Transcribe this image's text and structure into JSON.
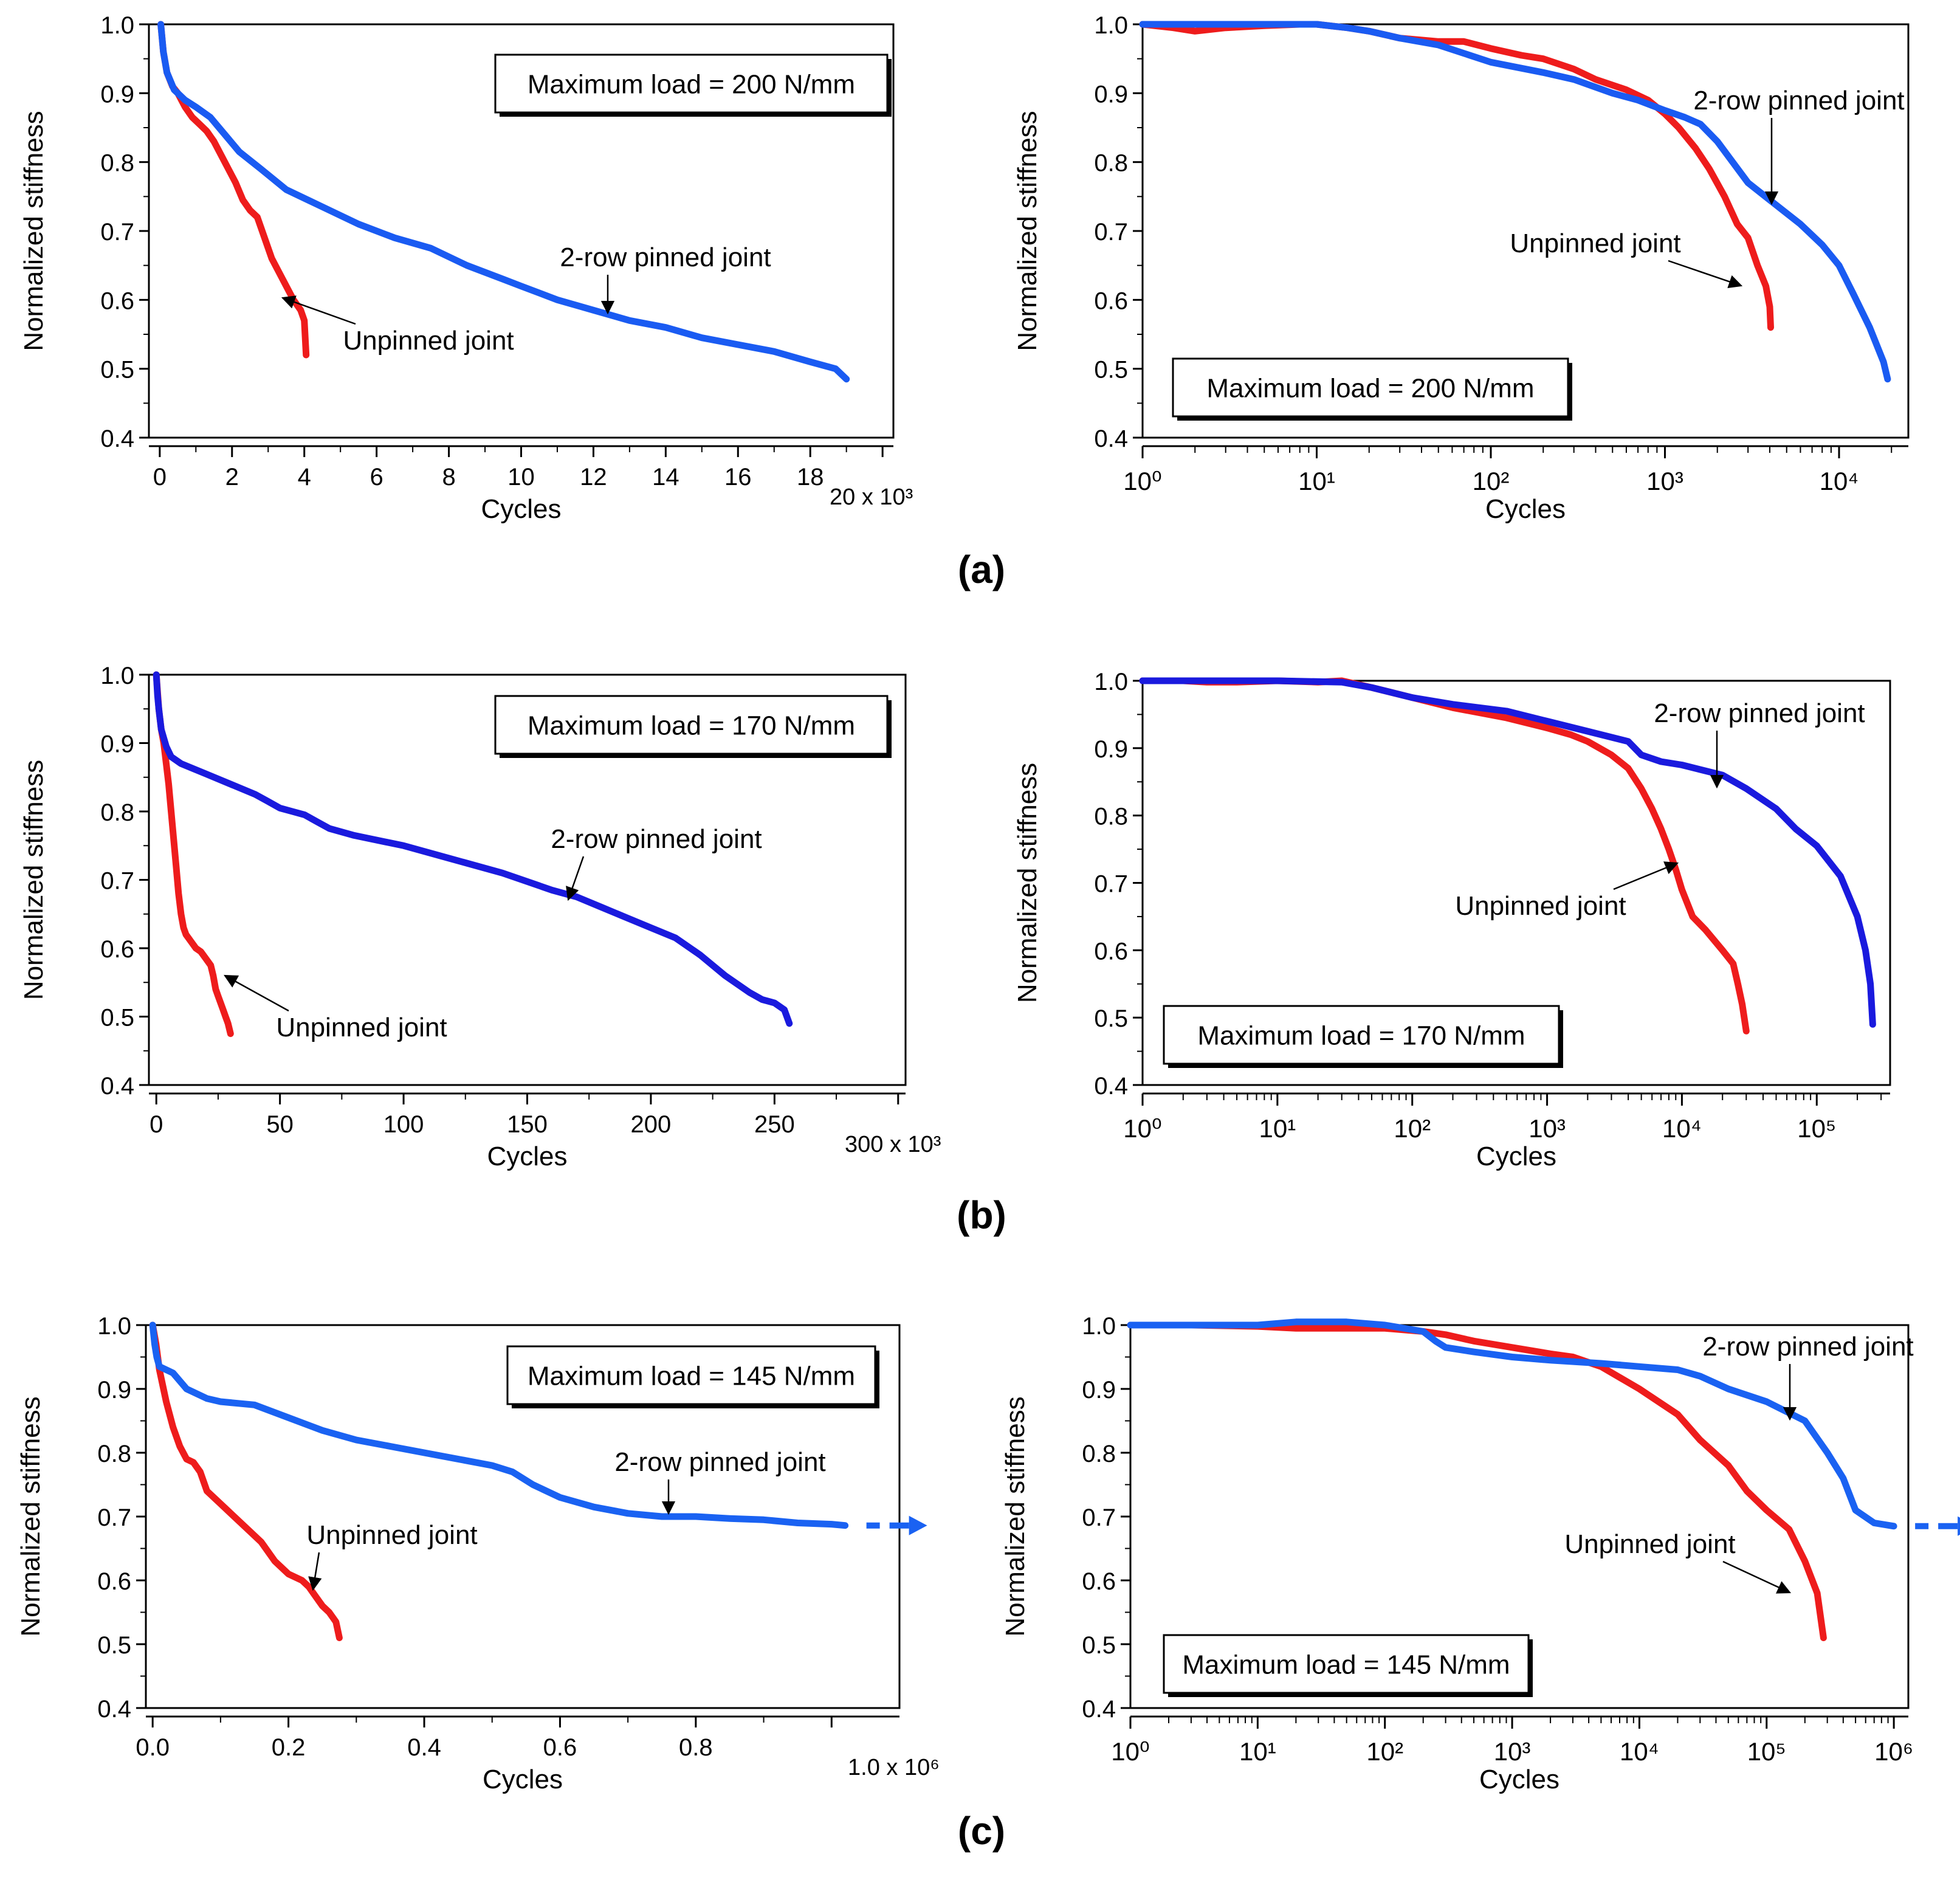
{
  "row_labels": [
    "(a)",
    "(b)",
    "(c)"
  ],
  "colors": {
    "unpinned": "#ee1c1c",
    "pinned_load200": "#1a5bf2",
    "pinned_load170": "#1a1ade",
    "pinned_load145": "#1a62f2"
  },
  "chart_data": [
    {
      "id": "a-linear",
      "type": "line",
      "xscale": "linear",
      "xlabel": "Cycles",
      "ylabel": "Normalized stiffness",
      "xlim": [
        -0.3,
        20.3
      ],
      "ylim": [
        0.4,
        1.0
      ],
      "xticks": [
        "0",
        "2",
        "4",
        "6",
        "8",
        "10",
        "12",
        "14",
        "16",
        "18"
      ],
      "xtick_values": [
        0,
        2,
        4,
        6,
        8,
        10,
        12,
        14,
        16,
        18
      ],
      "x_multiplier_label": "20 x 10³",
      "yticks": [
        "0.4",
        "0.5",
        "0.6",
        "0.7",
        "0.8",
        "0.9",
        "1.0"
      ],
      "ytick_values": [
        0.4,
        0.5,
        0.6,
        0.7,
        0.8,
        0.9,
        1.0
      ],
      "legend_box": {
        "text": "Maximum load = 200 N/mm",
        "position": "top-right"
      },
      "series": [
        {
          "name": "Unpinned joint",
          "color": "unpinned",
          "x": [
            0.03,
            0.1,
            0.2,
            0.35,
            0.5,
            0.7,
            0.9,
            1.1,
            1.3,
            1.5,
            1.7,
            1.9,
            2.1,
            2.3,
            2.5,
            2.7,
            2.9,
            3.1,
            3.3,
            3.5,
            3.7,
            3.9,
            4.0,
            4.05
          ],
          "y": [
            1.0,
            0.96,
            0.93,
            0.91,
            0.9,
            0.88,
            0.865,
            0.855,
            0.845,
            0.83,
            0.81,
            0.79,
            0.77,
            0.745,
            0.73,
            0.72,
            0.69,
            0.66,
            0.64,
            0.62,
            0.6,
            0.585,
            0.57,
            0.52
          ]
        },
        {
          "name": "2-row pinned joint",
          "color": "pinned_load200",
          "x": [
            0.03,
            0.1,
            0.2,
            0.4,
            0.7,
            1.0,
            1.4,
            1.8,
            2.2,
            2.8,
            3.5,
            4.5,
            5.5,
            6.5,
            7.5,
            8.5,
            9.5,
            10,
            11,
            12,
            13,
            14,
            15,
            16,
            17,
            18,
            18.7,
            19.0
          ],
          "y": [
            1.0,
            0.96,
            0.93,
            0.905,
            0.89,
            0.88,
            0.865,
            0.84,
            0.815,
            0.79,
            0.76,
            0.735,
            0.71,
            0.69,
            0.675,
            0.65,
            0.63,
            0.62,
            0.6,
            0.585,
            0.57,
            0.56,
            0.545,
            0.535,
            0.525,
            0.51,
            0.5,
            0.485
          ]
        }
      ],
      "annotations": [
        {
          "text": "2-row pinned joint",
          "target": "2-row pinned joint"
        },
        {
          "text": "Unpinned joint",
          "target": "Unpinned joint"
        }
      ]
    },
    {
      "id": "a-log",
      "type": "line",
      "xscale": "log",
      "xlabel": "Cycles",
      "ylabel": "Normalized stiffness",
      "xlim": [
        1,
        25000
      ],
      "ylim": [
        0.4,
        1.0
      ],
      "xticks": [
        "10^0",
        "10^1",
        "10^2",
        "10^3",
        "10^4"
      ],
      "yticks": [
        "0.4",
        "0.5",
        "0.6",
        "0.7",
        "0.8",
        "0.9",
        "1.0"
      ],
      "ytick_values": [
        0.4,
        0.5,
        0.6,
        0.7,
        0.8,
        0.9,
        1.0
      ],
      "legend_box": {
        "text": "Maximum load = 200 N/mm",
        "position": "bottom-left"
      },
      "series": [
        {
          "name": "Unpinned joint",
          "color": "unpinned",
          "x": [
            1,
            1.5,
            2,
            3,
            5,
            8,
            10,
            15,
            20,
            30,
            50,
            70,
            100,
            150,
            200,
            300,
            400,
            600,
            800,
            1000,
            1200,
            1500,
            1800,
            2200,
            2600,
            3000,
            3400,
            3800,
            4000,
            4050
          ],
          "y": [
            1.0,
            0.995,
            0.99,
            0.995,
            0.998,
            1.0,
            1.0,
            0.995,
            0.99,
            0.98,
            0.975,
            0.975,
            0.965,
            0.955,
            0.95,
            0.935,
            0.92,
            0.905,
            0.89,
            0.87,
            0.85,
            0.82,
            0.79,
            0.75,
            0.71,
            0.69,
            0.65,
            0.62,
            0.59,
            0.56
          ]
        },
        {
          "name": "2-row pinned joint",
          "color": "pinned_load200",
          "x": [
            1,
            2,
            5,
            10,
            15,
            20,
            30,
            50,
            100,
            200,
            300,
            500,
            700,
            1000,
            1300,
            1600,
            2000,
            3000,
            4000,
            6000,
            8000,
            10000,
            12000,
            15000,
            18000,
            19000
          ],
          "y": [
            1.0,
            1.0,
            1.0,
            1.0,
            0.995,
            0.99,
            0.98,
            0.97,
            0.945,
            0.93,
            0.92,
            0.9,
            0.89,
            0.875,
            0.865,
            0.855,
            0.83,
            0.77,
            0.745,
            0.71,
            0.68,
            0.65,
            0.61,
            0.56,
            0.51,
            0.485
          ]
        }
      ],
      "annotations": [
        {
          "text": "2-row pinned joint",
          "target": "2-row pinned joint"
        },
        {
          "text": "Unpinned joint",
          "target": "Unpinned joint"
        }
      ]
    },
    {
      "id": "b-linear",
      "type": "line",
      "xscale": "linear",
      "xlabel": "Cycles",
      "ylabel": "Normalized stiffness",
      "xlim": [
        -3,
        303
      ],
      "ylim": [
        0.4,
        1.0
      ],
      "xticks": [
        "0",
        "50",
        "100",
        "150",
        "200",
        "250"
      ],
      "xtick_values": [
        0,
        50,
        100,
        150,
        200,
        250
      ],
      "x_multiplier_label": "300 x 10³",
      "yticks": [
        "0.4",
        "0.5",
        "0.6",
        "0.7",
        "0.8",
        "0.9",
        "1.0"
      ],
      "ytick_values": [
        0.4,
        0.5,
        0.6,
        0.7,
        0.8,
        0.9,
        1.0
      ],
      "legend_box": {
        "text": "Maximum load = 170 N/mm",
        "position": "top-right"
      },
      "series": [
        {
          "name": "Unpinned joint",
          "color": "unpinned",
          "x": [
            0,
            1,
            2,
            3,
            4,
            5,
            6,
            7,
            8,
            9,
            10,
            11,
            12,
            14,
            16,
            18,
            20,
            22,
            23,
            24,
            25,
            26,
            27,
            28,
            29,
            30
          ],
          "y": [
            1.0,
            0.95,
            0.92,
            0.9,
            0.87,
            0.84,
            0.8,
            0.76,
            0.72,
            0.68,
            0.65,
            0.63,
            0.62,
            0.61,
            0.6,
            0.595,
            0.585,
            0.575,
            0.56,
            0.54,
            0.53,
            0.52,
            0.51,
            0.5,
            0.49,
            0.475
          ]
        },
        {
          "name": "2-row pinned joint",
          "color": "pinned_load170",
          "x": [
            0,
            0.5,
            1,
            2,
            4,
            6,
            10,
            20,
            30,
            40,
            45,
            50,
            55,
            60,
            65,
            70,
            80,
            100,
            120,
            140,
            160,
            170,
            180,
            190,
            200,
            210,
            220,
            230,
            240,
            245,
            250,
            254,
            255,
            256
          ],
          "y": [
            1.0,
            0.97,
            0.95,
            0.92,
            0.895,
            0.88,
            0.87,
            0.855,
            0.84,
            0.825,
            0.815,
            0.805,
            0.8,
            0.795,
            0.785,
            0.775,
            0.765,
            0.75,
            0.73,
            0.71,
            0.685,
            0.675,
            0.66,
            0.645,
            0.63,
            0.615,
            0.59,
            0.56,
            0.535,
            0.525,
            0.52,
            0.51,
            0.5,
            0.49
          ]
        }
      ],
      "annotations": [
        {
          "text": "2-row pinned joint",
          "target": "2-row pinned joint"
        },
        {
          "text": "Unpinned joint",
          "target": "Unpinned joint"
        }
      ]
    },
    {
      "id": "b-log",
      "type": "line",
      "xscale": "log",
      "xlabel": "Cycles",
      "ylabel": "Normalized stiffness",
      "xlim": [
        1,
        350000
      ],
      "ylim": [
        0.4,
        1.0
      ],
      "xticks": [
        "10^0",
        "10^1",
        "10^2",
        "10^3",
        "10^4",
        "10^5"
      ],
      "yticks": [
        "0.4",
        "0.5",
        "0.6",
        "0.7",
        "0.8",
        "0.9",
        "1.0"
      ],
      "ytick_values": [
        0.4,
        0.5,
        0.6,
        0.7,
        0.8,
        0.9,
        1.0
      ],
      "legend_box": {
        "text": "Maximum load = 170 N/mm",
        "position": "bottom-left"
      },
      "series": [
        {
          "name": "Unpinned joint",
          "color": "unpinned",
          "x": [
            1,
            2,
            3,
            5,
            10,
            20,
            30,
            50,
            100,
            200,
            500,
            1000,
            1500,
            2000,
            3000,
            4000,
            5000,
            6000,
            7000,
            8000,
            9000,
            10000,
            12000,
            15000,
            20000,
            24000,
            26000,
            28000,
            30000
          ],
          "y": [
            1.0,
            1.0,
            0.998,
            0.998,
            1.0,
            0.998,
            1.0,
            0.99,
            0.975,
            0.96,
            0.945,
            0.93,
            0.92,
            0.91,
            0.89,
            0.87,
            0.84,
            0.81,
            0.78,
            0.75,
            0.72,
            0.69,
            0.65,
            0.63,
            0.6,
            0.58,
            0.55,
            0.52,
            0.48
          ]
        },
        {
          "name": "2-row pinned joint",
          "color": "pinned_load170",
          "x": [
            1,
            10,
            30,
            50,
            100,
            200,
            500,
            1000,
            2000,
            4000,
            5000,
            7000,
            10000,
            20000,
            30000,
            50000,
            70000,
            100000,
            150000,
            200000,
            230000,
            250000,
            260000
          ],
          "y": [
            1.0,
            1.0,
            0.998,
            0.99,
            0.975,
            0.965,
            0.955,
            0.94,
            0.925,
            0.91,
            0.89,
            0.88,
            0.875,
            0.86,
            0.84,
            0.81,
            0.78,
            0.755,
            0.71,
            0.65,
            0.6,
            0.55,
            0.49
          ]
        }
      ],
      "annotations": [
        {
          "text": "2-row pinned joint",
          "target": "2-row pinned joint"
        },
        {
          "text": "Unpinned joint",
          "target": "Unpinned joint"
        }
      ]
    },
    {
      "id": "c-linear",
      "type": "line",
      "xscale": "linear",
      "xlabel": "Cycles",
      "ylabel": "Normalized stiffness",
      "xlim": [
        -0.01,
        1.1
      ],
      "ylim": [
        0.4,
        1.0
      ],
      "xticks": [
        "0.0",
        "0.2",
        "0.4",
        "0.6",
        "0.8"
      ],
      "xtick_values": [
        0.0,
        0.2,
        0.4,
        0.6,
        0.8
      ],
      "x_multiplier_label": "1.0 x 10⁶",
      "yticks": [
        "0.4",
        "0.5",
        "0.6",
        "0.7",
        "0.8",
        "0.9",
        "1.0"
      ],
      "ytick_values": [
        0.4,
        0.5,
        0.6,
        0.7,
        0.8,
        0.9,
        1.0
      ],
      "legend_box": {
        "text": "Maximum load = 145 N/mm",
        "position": "top-right"
      },
      "series": [
        {
          "name": "Unpinned joint",
          "color": "unpinned",
          "x": [
            0,
            0.005,
            0.01,
            0.02,
            0.03,
            0.04,
            0.05,
            0.06,
            0.07,
            0.08,
            0.1,
            0.12,
            0.14,
            0.16,
            0.18,
            0.2,
            0.22,
            0.23,
            0.24,
            0.25,
            0.26,
            0.27,
            0.275
          ],
          "y": [
            1.0,
            0.97,
            0.93,
            0.88,
            0.84,
            0.81,
            0.79,
            0.785,
            0.77,
            0.74,
            0.72,
            0.7,
            0.68,
            0.66,
            0.63,
            0.61,
            0.6,
            0.59,
            0.575,
            0.56,
            0.55,
            0.535,
            0.51
          ]
        },
        {
          "name": "2-row pinned joint",
          "color": "pinned_load145",
          "x": [
            0,
            0.003,
            0.006,
            0.01,
            0.02,
            0.03,
            0.05,
            0.08,
            0.1,
            0.15,
            0.2,
            0.25,
            0.3,
            0.35,
            0.4,
            0.45,
            0.5,
            0.53,
            0.56,
            0.6,
            0.65,
            0.7,
            0.75,
            0.8,
            0.85,
            0.9,
            0.95,
            1.0,
            1.02
          ],
          "y": [
            1.0,
            0.97,
            0.95,
            0.935,
            0.93,
            0.925,
            0.9,
            0.885,
            0.88,
            0.875,
            0.855,
            0.835,
            0.82,
            0.81,
            0.8,
            0.79,
            0.78,
            0.77,
            0.75,
            0.73,
            0.715,
            0.705,
            0.7,
            0.7,
            0.697,
            0.695,
            0.69,
            0.688,
            0.686
          ]
        }
      ],
      "continuation_arrow": {
        "series": "2-row pinned joint"
      },
      "annotations": [
        {
          "text": "2-row pinned joint",
          "target": "2-row pinned joint"
        },
        {
          "text": "Unpinned joint",
          "target": "Unpinned joint"
        }
      ]
    },
    {
      "id": "c-log",
      "type": "line",
      "xscale": "log",
      "xlabel": "Cycles",
      "ylabel": "Normalized stiffness",
      "xlim": [
        1,
        1300000
      ],
      "ylim": [
        0.4,
        1.0
      ],
      "xticks": [
        "10^0",
        "10^1",
        "10^2",
        "10^3",
        "10^4",
        "10^5",
        "10^6"
      ],
      "yticks": [
        "0.4",
        "0.5",
        "0.6",
        "0.7",
        "0.8",
        "0.9",
        "1.0"
      ],
      "ytick_values": [
        0.4,
        0.5,
        0.6,
        0.7,
        0.8,
        0.9,
        1.0
      ],
      "legend_box": {
        "text": "Maximum load = 145 N/mm",
        "position": "bottom-left"
      },
      "series": [
        {
          "name": "Unpinned joint",
          "color": "unpinned",
          "x": [
            1,
            3,
            10,
            20,
            50,
            100,
            200,
            300,
            500,
            1000,
            2000,
            3000,
            5000,
            10000,
            20000,
            30000,
            50000,
            70000,
            100000,
            150000,
            200000,
            250000,
            280000
          ],
          "y": [
            1.0,
            1.0,
            0.998,
            0.995,
            0.995,
            0.995,
            0.99,
            0.985,
            0.975,
            0.965,
            0.955,
            0.95,
            0.935,
            0.9,
            0.86,
            0.82,
            0.78,
            0.74,
            0.71,
            0.68,
            0.63,
            0.58,
            0.51
          ]
        },
        {
          "name": "2-row pinned joint",
          "color": "pinned_load145",
          "x": [
            1,
            3,
            10,
            20,
            50,
            100,
            200,
            250,
            300,
            500,
            1000,
            2000,
            5000,
            10000,
            20000,
            30000,
            50000,
            100000,
            200000,
            300000,
            400000,
            500000,
            700000,
            1000000
          ],
          "y": [
            1.0,
            1.0,
            1.0,
            1.005,
            1.005,
            1.0,
            0.99,
            0.975,
            0.965,
            0.958,
            0.95,
            0.945,
            0.94,
            0.935,
            0.93,
            0.92,
            0.9,
            0.88,
            0.85,
            0.8,
            0.76,
            0.71,
            0.69,
            0.685
          ]
        }
      ],
      "continuation_arrow": {
        "series": "2-row pinned joint"
      },
      "annotations": [
        {
          "text": "2-row pinned joint",
          "target": "2-row pinned joint"
        },
        {
          "text": "Unpinned joint",
          "target": "Unpinned joint"
        }
      ]
    }
  ]
}
